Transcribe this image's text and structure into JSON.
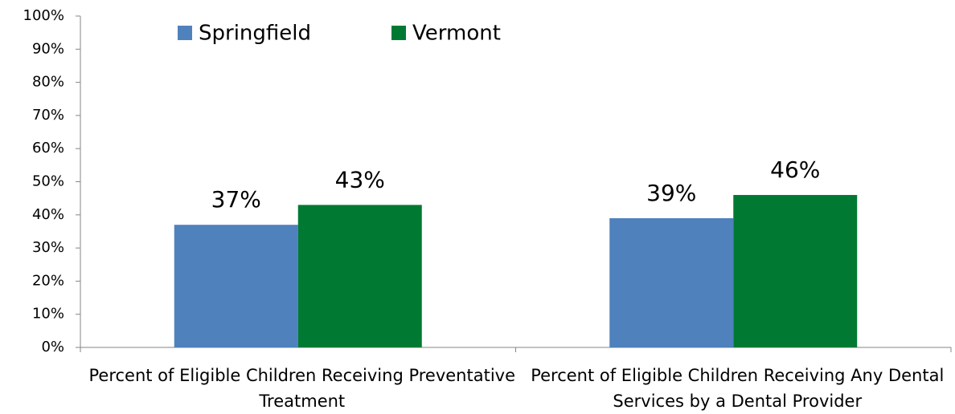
{
  "chart_data": {
    "type": "bar",
    "categories": [
      "Percent of Eligible Children Receiving Preventative Treatment",
      "Percent of Eligible Children Receiving Any Dental Services by a Dental Provider"
    ],
    "series": [
      {
        "name": "Springfield",
        "color": "#4f81bd",
        "values": [
          37,
          39
        ],
        "value_labels": [
          "37%",
          "39%"
        ]
      },
      {
        "name": "Vermont",
        "color": "#007a33",
        "values": [
          43,
          46
        ],
        "value_labels": [
          "43%",
          "46%"
        ]
      }
    ],
    "ylim": [
      0,
      100
    ],
    "yticks": [
      {
        "value": 0,
        "label": "0%"
      },
      {
        "value": 10,
        "label": "10%"
      },
      {
        "value": 20,
        "label": "20%"
      },
      {
        "value": 30,
        "label": "30%"
      },
      {
        "value": 40,
        "label": "40%"
      },
      {
        "value": 50,
        "label": "50%"
      },
      {
        "value": 60,
        "label": "60%"
      },
      {
        "value": 70,
        "label": "70%"
      },
      {
        "value": 80,
        "label": "80%"
      },
      {
        "value": 90,
        "label": "90%"
      },
      {
        "value": 100,
        "label": "100%"
      }
    ],
    "grid": false,
    "legend": "top"
  }
}
